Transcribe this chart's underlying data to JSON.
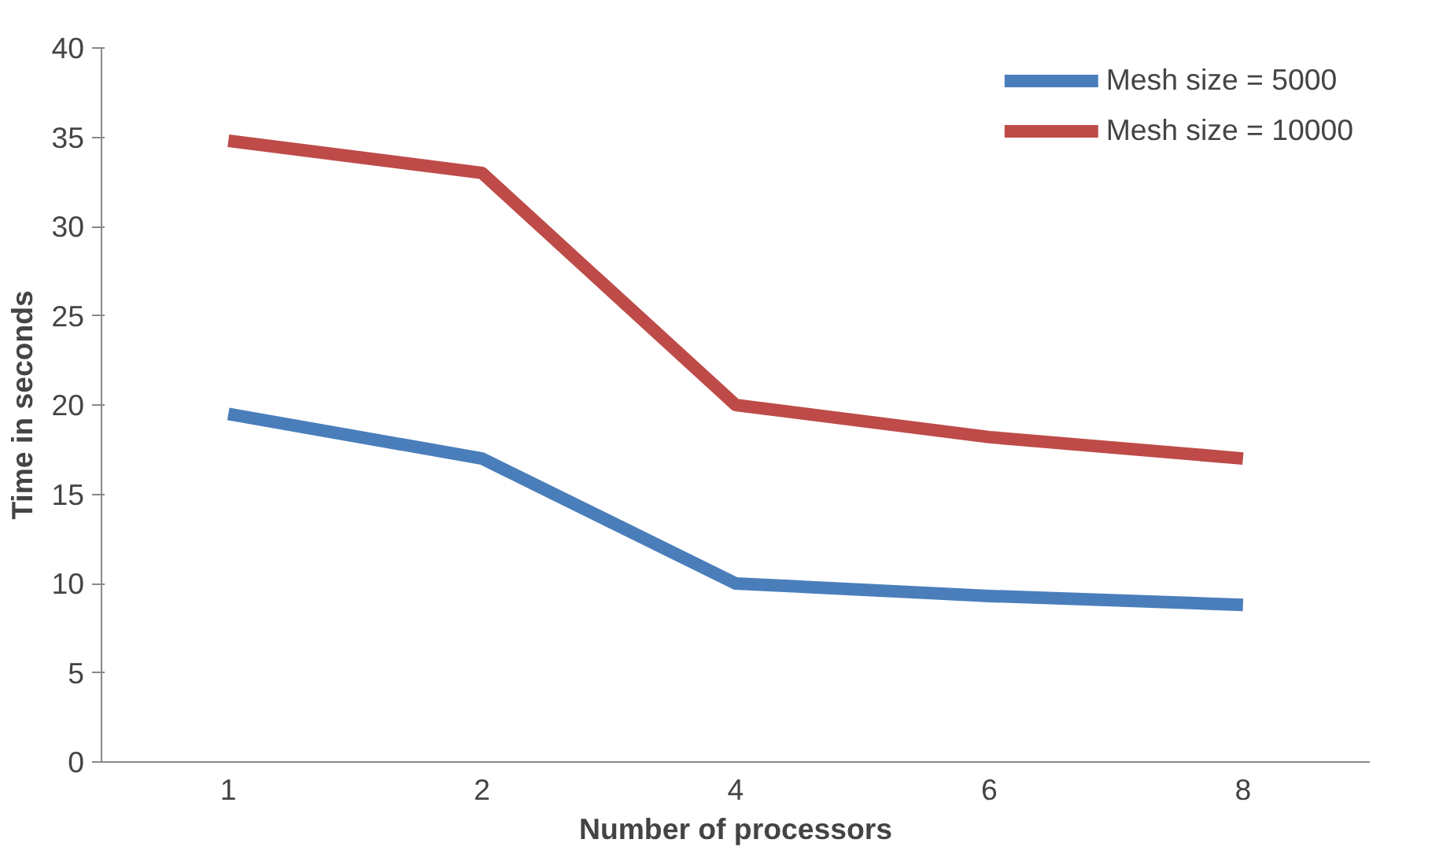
{
  "chart_data": {
    "type": "line",
    "xlabel": "Number of processors",
    "ylabel": "Time in seconds",
    "categories": [
      "1",
      "2",
      "4",
      "6",
      "8"
    ],
    "series": [
      {
        "name": "Mesh size = 5000",
        "color": "#4a7ebb",
        "values": [
          19.5,
          17,
          10,
          9.3,
          8.8
        ]
      },
      {
        "name": "Mesh size = 10000",
        "color": "#be4b48",
        "values": [
          34.8,
          33,
          20,
          18.2,
          17
        ]
      }
    ],
    "ylim": [
      0,
      40
    ],
    "yticks": [
      0,
      5,
      10,
      15,
      20,
      25,
      30,
      35,
      40
    ],
    "grid": false,
    "legend": "top right",
    "marker": "none",
    "line_style": "solid"
  }
}
